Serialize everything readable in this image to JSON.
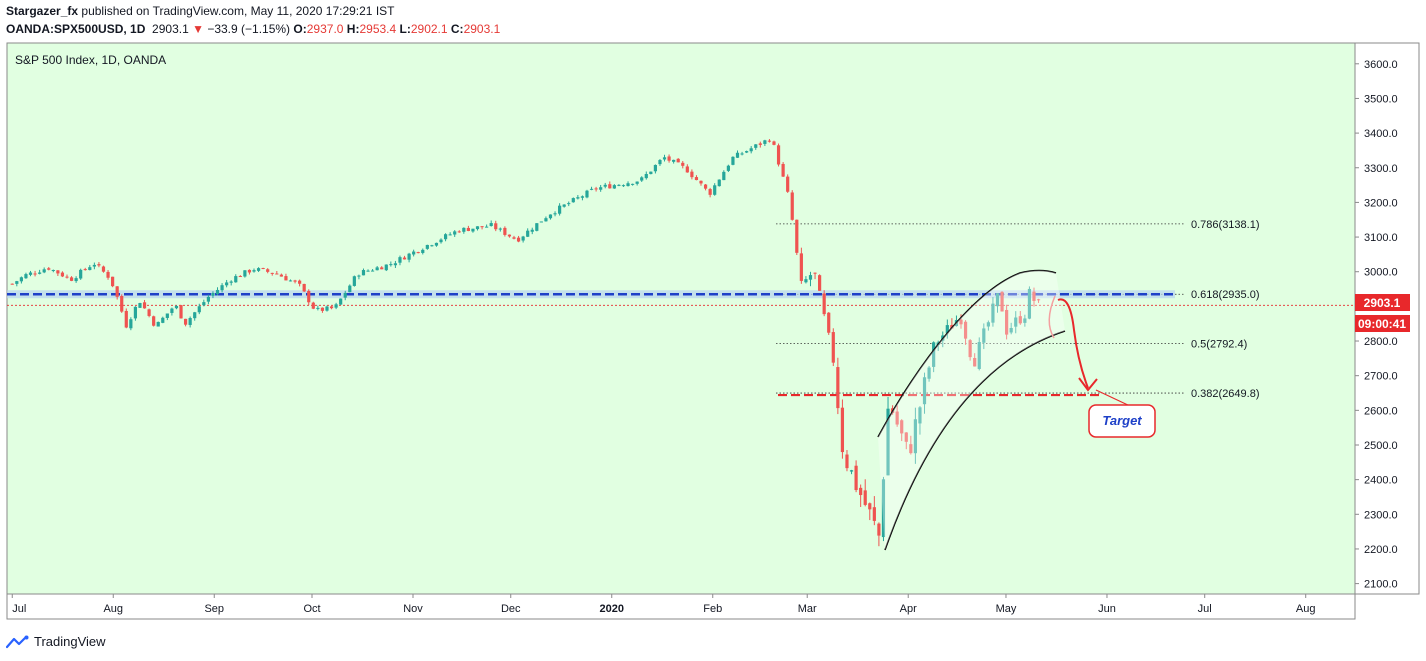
{
  "header": {
    "author": "Stargazer_fx",
    "published_text": "published on TradingView.com, May 11, 2020 17:29:21 IST",
    "symbol": "OANDA:SPX500USD, 1D",
    "last": "2903.1",
    "change": "−33.9 (−1.15%)",
    "o_label": "O:",
    "o": "2937.0",
    "h_label": "H:",
    "h": "2953.4",
    "l_label": "L:",
    "l": "2902.1",
    "c_label": "C:",
    "c": "2903.1"
  },
  "footer": {
    "brand": "TradingView"
  },
  "colors": {
    "background": "#e1ffe1",
    "up": "#26a69a",
    "down": "#ef5350",
    "blue_line": "#1e40c8",
    "red_line": "#e8282b"
  },
  "chart_data": {
    "type": "candlestick",
    "title": "S&P 500 Index, 1D, OANDA",
    "x_ticks": [
      "Jul",
      "Aug",
      "Sep",
      "Oct",
      "Nov",
      "Dec",
      "2020",
      "Feb",
      "Mar",
      "Apr",
      "May",
      "Jun",
      "Jul",
      "Aug"
    ],
    "y_ticks": [
      "3600.0",
      "3500.0",
      "3400.0",
      "3300.0",
      "3200.0",
      "3100.0",
      "3000.0",
      "2900.0",
      "2800.0",
      "2700.0",
      "2600.0",
      "2500.0",
      "2400.0",
      "2300.0",
      "2200.0",
      "2100.0"
    ],
    "ylim": [
      2070,
      3660
    ],
    "fib_levels": [
      {
        "label": "0.786(3138.1)",
        "value": 3138.1
      },
      {
        "label": "0.618(2935.0)",
        "value": 2935.0
      },
      {
        "label": "0.5(2792.4)",
        "value": 2792.4
      },
      {
        "label": "0.382(2649.8)",
        "value": 2649.8
      }
    ],
    "last_price_label": "2903.1",
    "last_price": 2903.1,
    "countdown_label": "09:00:41",
    "annotation": "Target",
    "close_path": [
      [
        "2019-07-01",
        2965
      ],
      [
        "2019-07-05",
        2990
      ],
      [
        "2019-07-12",
        3012
      ],
      [
        "2019-07-19",
        2978
      ],
      [
        "2019-07-26",
        3025
      ],
      [
        "2019-07-31",
        2982
      ],
      [
        "2019-08-02",
        2932
      ],
      [
        "2019-08-05",
        2845
      ],
      [
        "2019-08-09",
        2918
      ],
      [
        "2019-08-14",
        2842
      ],
      [
        "2019-08-20",
        2905
      ],
      [
        "2019-08-23",
        2850
      ],
      [
        "2019-08-30",
        2926
      ],
      [
        "2019-09-06",
        2978
      ],
      [
        "2019-09-13",
        3008
      ],
      [
        "2019-09-20",
        2995
      ],
      [
        "2019-09-27",
        2962
      ],
      [
        "2019-10-02",
        2888
      ],
      [
        "2019-10-08",
        2895
      ],
      [
        "2019-10-15",
        2995
      ],
      [
        "2019-10-25",
        3022
      ],
      [
        "2019-11-05",
        3075
      ],
      [
        "2019-11-15",
        3120
      ],
      [
        "2019-11-25",
        3133
      ],
      [
        "2019-12-03",
        3092
      ],
      [
        "2019-12-13",
        3168
      ],
      [
        "2019-12-27",
        3240
      ],
      [
        "2020-01-10",
        3265
      ],
      [
        "2020-01-17",
        3330
      ],
      [
        "2020-01-24",
        3295
      ],
      [
        "2020-01-31",
        3225
      ],
      [
        "2020-02-07",
        3328
      ],
      [
        "2020-02-19",
        3386
      ],
      [
        "2020-02-24",
        3225
      ],
      [
        "2020-02-26",
        3116
      ],
      [
        "2020-02-28",
        2954
      ],
      [
        "2020-03-03",
        3003
      ],
      [
        "2020-03-09",
        2746
      ],
      [
        "2020-03-12",
        2480
      ],
      [
        "2020-03-16",
        2386
      ],
      [
        "2020-03-20",
        2304
      ],
      [
        "2020-03-23",
        2237
      ],
      [
        "2020-03-26",
        2630
      ],
      [
        "2020-04-01",
        2470
      ],
      [
        "2020-04-09",
        2789
      ],
      [
        "2020-04-17",
        2875
      ],
      [
        "2020-04-21",
        2736
      ],
      [
        "2020-04-29",
        2939
      ],
      [
        "2020-05-01",
        2830
      ],
      [
        "2020-05-07",
        2881
      ],
      [
        "2020-05-08",
        2937
      ],
      [
        "2020-05-11",
        2903
      ]
    ]
  }
}
